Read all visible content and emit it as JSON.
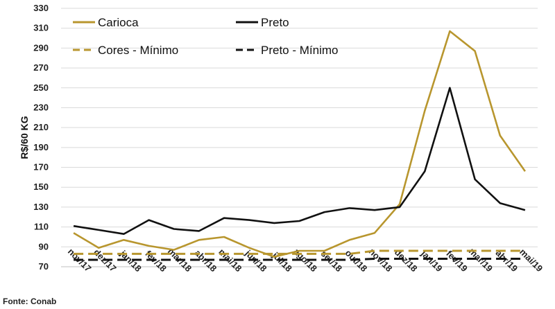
{
  "chart_data": {
    "type": "line",
    "ylabel": "R$/60 KG",
    "xlabel": "",
    "title": "",
    "ylim": [
      70,
      330
    ],
    "yticks": [
      70,
      90,
      110,
      130,
      150,
      170,
      190,
      210,
      230,
      250,
      270,
      290,
      310,
      330
    ],
    "categories": [
      "nov/17",
      "dez/17",
      "jan/18",
      "fev/18",
      "mar/18",
      "abr/18",
      "mai/18",
      "jun/18",
      "jul/18",
      "ago/18",
      "set/18",
      "out/18",
      "nov/18",
      "dez/18",
      "jan/19",
      "fev/19",
      "mar/19",
      "abr/19",
      "mai/19"
    ],
    "grid": "horizontal",
    "legend_placement": "top",
    "series": [
      {
        "name": "Carioca",
        "color": "#b8962e",
        "style": "solid",
        "values": [
          104,
          89,
          97,
          91,
          87,
          97,
          100,
          89,
          80,
          86,
          86,
          97,
          104,
          133,
          227,
          307,
          287,
          202,
          166
        ]
      },
      {
        "name": "Preto",
        "color": "#111111",
        "style": "solid",
        "values": [
          111,
          107,
          103,
          117,
          108,
          106,
          119,
          117,
          114,
          116,
          125,
          129,
          127,
          130,
          166,
          250,
          158,
          134,
          127
        ]
      },
      {
        "name": "Cores - Mínimo",
        "color": "#b8962e",
        "style": "dashed",
        "values": [
          83,
          83,
          83,
          83,
          83,
          83,
          83,
          83,
          83,
          83,
          83,
          83,
          86,
          86,
          86,
          86,
          86,
          86,
          86
        ]
      },
      {
        "name": "Preto - Mínimo",
        "color": "#111111",
        "style": "dashed",
        "values": [
          77,
          77,
          77,
          77,
          77,
          77,
          77,
          77,
          77,
          77,
          77,
          77,
          78,
          78,
          78,
          78,
          78,
          78,
          78
        ]
      }
    ]
  },
  "source": "Fonte: Conab"
}
